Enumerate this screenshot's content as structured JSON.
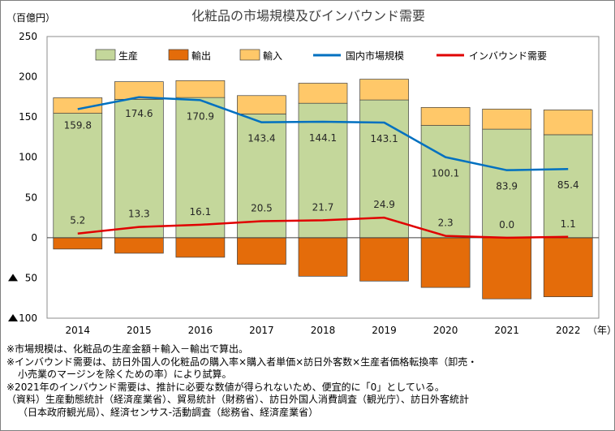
{
  "chart_data": {
    "type": "bar",
    "title": "化粧品の市場規模及びインバウンド需要",
    "unit_label": "（百億円）",
    "x_unit": "（年）",
    "categories": [
      "2014",
      "2015",
      "2016",
      "2017",
      "2018",
      "2019",
      "2020",
      "2021",
      "2022"
    ],
    "ylim": [
      -100,
      250
    ],
    "y_ticks": [
      250,
      200,
      150,
      100,
      50,
      0,
      -50,
      -100
    ],
    "y_tick_labels": [
      "250",
      "200",
      "150",
      "100",
      "50",
      "0",
      "▲ 50",
      "▲ 100"
    ],
    "grid": false,
    "legend_position": "top",
    "series": [
      {
        "name": "生産",
        "kind": "bar",
        "color": "#c4d79b",
        "values": [
          154.6,
          172.0,
          174.2,
          153.8,
          167.1,
          171.2,
          139.5,
          134.9,
          128.0
        ]
      },
      {
        "name": "輸出",
        "kind": "bar",
        "color": "#e46c0a",
        "values": [
          -14.1,
          -19.3,
          -24.3,
          -33.2,
          -47.9,
          -53.9,
          -61.8,
          -76.0,
          -73.4
        ]
      },
      {
        "name": "輸入",
        "kind": "bar",
        "color": "#ffc869",
        "values": [
          19.3,
          21.9,
          21.0,
          22.8,
          24.9,
          25.8,
          22.4,
          25.0,
          30.8
        ]
      },
      {
        "name": "国内市場規模",
        "kind": "line",
        "color": "#0070c0",
        "values": [
          159.8,
          174.6,
          170.9,
          143.4,
          144.1,
          143.1,
          100.1,
          83.9,
          85.4
        ],
        "labels": [
          "159.8",
          "174.6",
          "170.9",
          "143.4",
          "144.1",
          "143.1",
          "100.1",
          "83.9",
          "85.4"
        ]
      },
      {
        "name": "インバウンド需要",
        "kind": "line",
        "color": "#e00000",
        "values": [
          5.2,
          13.3,
          16.1,
          20.5,
          21.7,
          24.9,
          2.3,
          0.0,
          1.1
        ],
        "labels": [
          "5.2",
          "13.3",
          "16.1",
          "20.5",
          "21.7",
          "24.9",
          "2.3",
          "0.0",
          "1.1"
        ]
      }
    ]
  },
  "notes": [
    "※市場規模は、化粧品の生産金額＋輸入－輸出で算出。",
    "※インバウンド需要は、訪日外国人の化粧品の購入率×購入者単価×訪日外客数×生産者価格転換率（卸売・",
    "小売業のマージンを除くための率）により試算。",
    "※2021年のインバウンド需要は、推計に必要な数値が得られないため、便宜的に「0」としている。",
    "（資料）生産動態統計（経済産業省）、貿易統計（財務省）、訪日外国人消費調査（観光庁）、訪日外客統計",
    "（日本政府観光局）、経済センサス-活動調査（総務省、経済産業省）"
  ]
}
